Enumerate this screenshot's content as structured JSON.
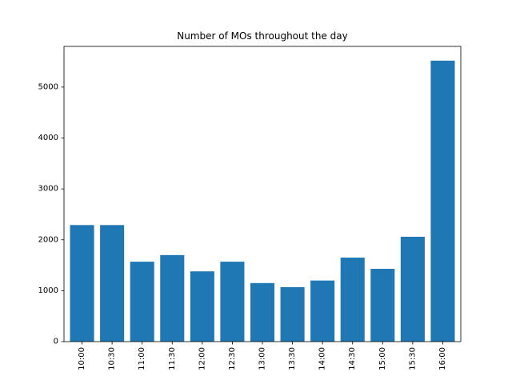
{
  "chart_data": {
    "type": "bar",
    "title": "Number of MOs throughout the day",
    "xlabel": "",
    "ylabel": "",
    "categories": [
      "10:00",
      "10:30",
      "11:00",
      "11:30",
      "12:00",
      "12:30",
      "13:00",
      "13:30",
      "14:00",
      "14:30",
      "15:00",
      "15:30",
      "16:00"
    ],
    "values": [
      2290,
      2290,
      1570,
      1700,
      1380,
      1570,
      1150,
      1070,
      1200,
      1650,
      1430,
      2060,
      5520
    ],
    "ylim": [
      0,
      5800
    ],
    "yticks": [
      0,
      1000,
      2000,
      3000,
      4000,
      5000
    ],
    "bar_color": "#1f77b4",
    "grid": false,
    "legend": "none"
  }
}
